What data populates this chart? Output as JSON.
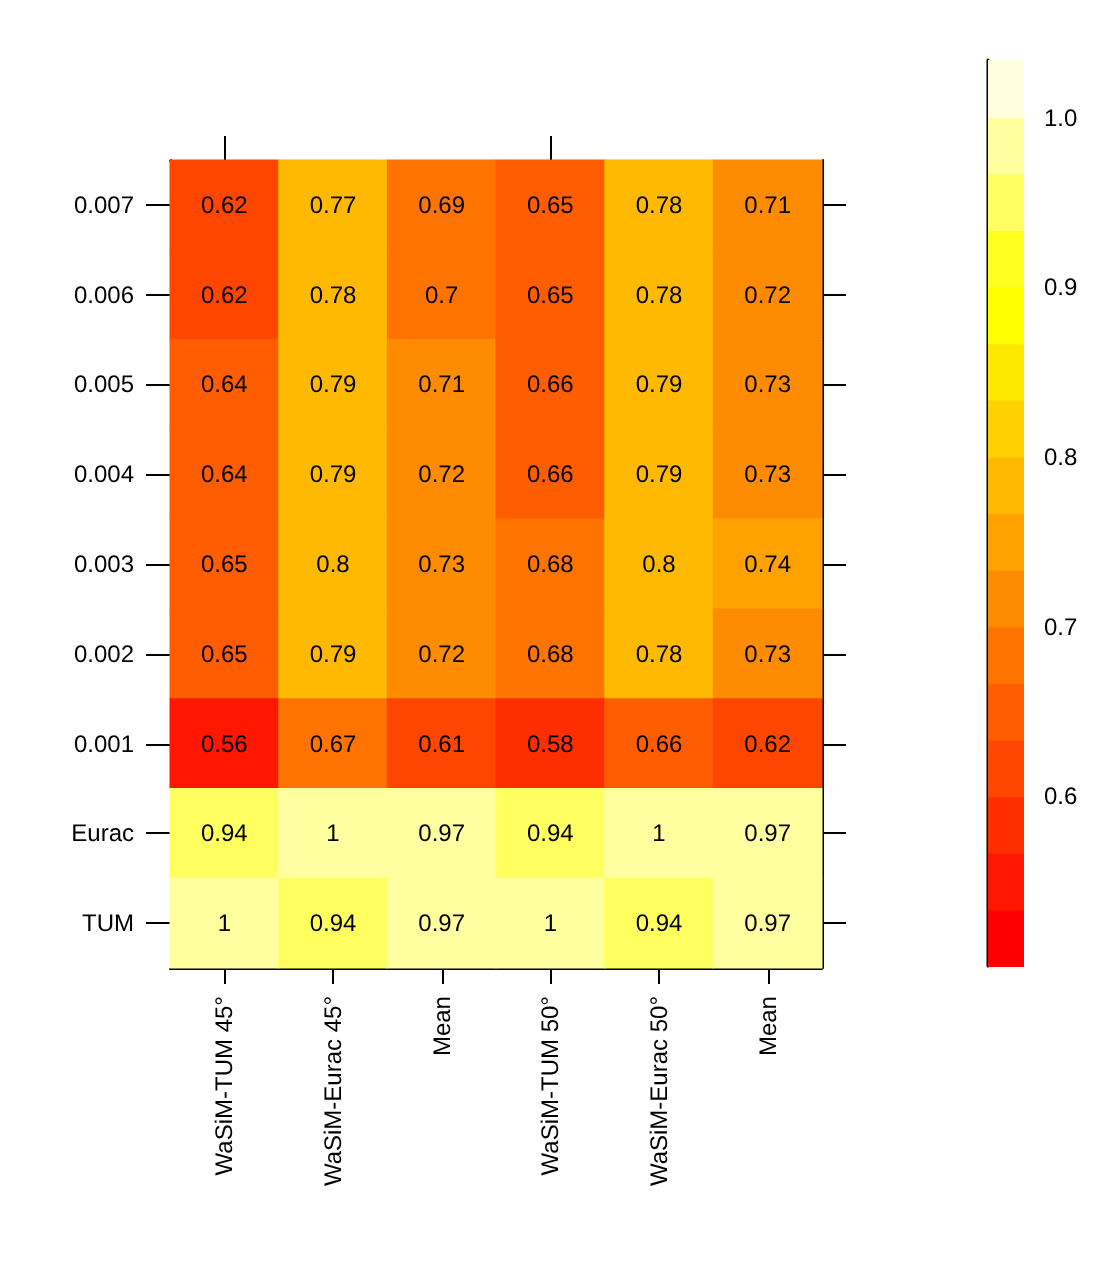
{
  "chart_data": {
    "type": "heatmap",
    "categories": [
      "WaSiM-TUM 45°",
      "WaSiM-Eurac 45°",
      "Mean",
      "WaSiM-TUM 50°",
      "WaSiM-Eurac 50°",
      "Mean"
    ],
    "y_categories": [
      "0.007",
      "0.006",
      "0.005",
      "0.004",
      "0.003",
      "0.002",
      "0.001",
      "Eurac",
      "TUM"
    ],
    "cells": [
      [
        0.62,
        0.77,
        0.69,
        0.65,
        0.78,
        0.71
      ],
      [
        0.62,
        0.78,
        0.7,
        0.65,
        0.78,
        0.72
      ],
      [
        0.64,
        0.79,
        0.71,
        0.66,
        0.79,
        0.73
      ],
      [
        0.64,
        0.79,
        0.72,
        0.66,
        0.79,
        0.73
      ],
      [
        0.65,
        0.8,
        0.73,
        0.68,
        0.8,
        0.74
      ],
      [
        0.65,
        0.79,
        0.72,
        0.68,
        0.78,
        0.73
      ],
      [
        0.56,
        0.67,
        0.61,
        0.58,
        0.66,
        0.62
      ],
      [
        0.94,
        1,
        0.97,
        0.94,
        1,
        0.97
      ],
      [
        1,
        0.94,
        0.97,
        1,
        0.94,
        0.97
      ]
    ],
    "data_labels": true,
    "clim": [
      0.5,
      1.034
    ],
    "cticks": [
      0.6,
      0.7,
      0.8,
      0.9,
      {
        "value": 1.0,
        "label": "1.0"
      }
    ]
  }
}
